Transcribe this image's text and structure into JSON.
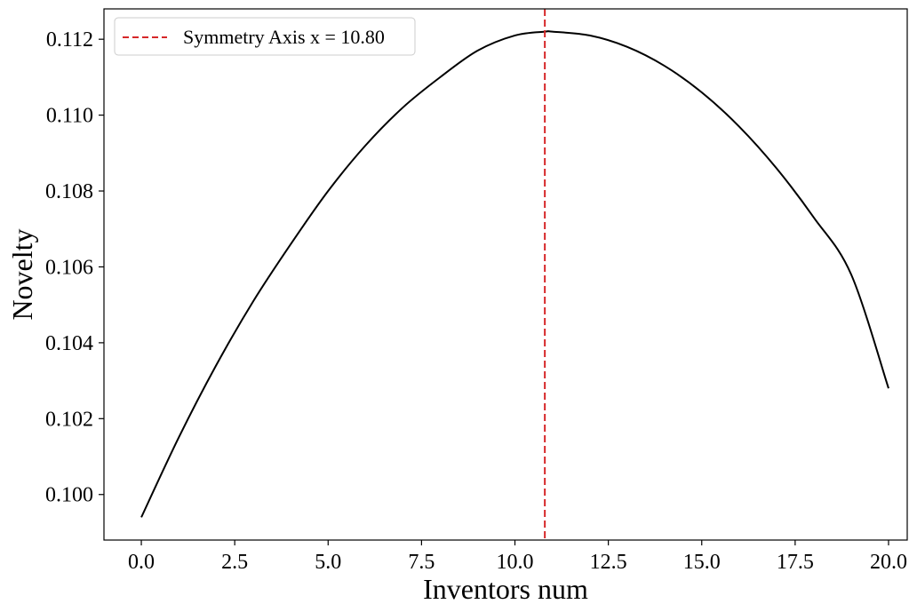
{
  "chart_data": {
    "type": "line",
    "title": "",
    "xlabel": "Inventors num",
    "ylabel": "Novelty",
    "xlim": [
      -1.0,
      20.5
    ],
    "ylim": [
      0.0988,
      0.1128
    ],
    "x_ticks": [
      0.0,
      2.5,
      5.0,
      7.5,
      10.0,
      12.5,
      15.0,
      17.5,
      20.0
    ],
    "x_tick_labels": [
      "0.0",
      "2.5",
      "5.0",
      "7.5",
      "10.0",
      "12.5",
      "15.0",
      "17.5",
      "20.0"
    ],
    "y_ticks": [
      0.1,
      0.102,
      0.104,
      0.106,
      0.108,
      0.11,
      0.112
    ],
    "y_tick_labels": [
      "0.100",
      "0.102",
      "0.104",
      "0.106",
      "0.108",
      "0.110",
      "0.112"
    ],
    "grid": false,
    "legend_position": "top-left",
    "series": [
      {
        "style": "solid",
        "color": "#000000",
        "x": [
          0,
          1,
          2,
          3,
          4,
          5,
          6,
          7,
          8,
          9,
          10,
          10.8,
          11,
          12,
          13,
          14,
          15,
          16,
          17,
          18,
          19,
          20
        ],
        "y": [
          0.0994,
          0.1015,
          0.1034,
          0.1051,
          0.1066,
          0.108,
          0.1092,
          0.1102,
          0.111,
          0.1117,
          0.1121,
          0.1122,
          0.1122,
          0.1121,
          0.1118,
          0.1113,
          0.1106,
          0.1097,
          0.1086,
          0.1073,
          0.1058,
          0.1028
        ]
      }
    ],
    "reference_lines": [
      {
        "orientation": "vertical",
        "x": 10.8,
        "name": "Symmetry Axis x = 10.80",
        "style": "dashed",
        "color": "#d62728"
      }
    ]
  }
}
